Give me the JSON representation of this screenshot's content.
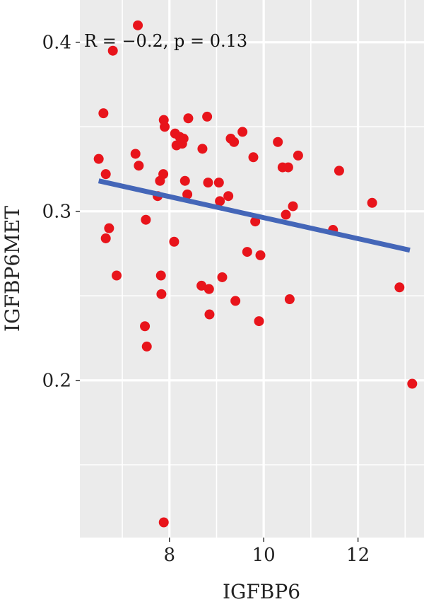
{
  "chart_data": {
    "type": "scatter",
    "title": "",
    "xlabel": "IGFBP6",
    "ylabel": "IGFBP6MET",
    "annotation": "R = −0.2, p = 0.13",
    "xlim": [
      6.1,
      13.4
    ],
    "ylim": [
      0.107,
      0.425
    ],
    "x_ticks": [
      8,
      10,
      12
    ],
    "x_tick_labels": [
      "8",
      "10",
      "12"
    ],
    "y_ticks": [
      0.2,
      0.3,
      0.4
    ],
    "y_tick_labels": [
      "0.2",
      "0.3",
      "0.4"
    ],
    "grid": true,
    "colors": {
      "panel": "#ebebeb",
      "grid": "#ffffff",
      "points": "#e8141b",
      "fit": "#4466b8"
    },
    "fit_line": {
      "x": [
        6.5,
        13.1
      ],
      "y": [
        0.318,
        0.277
      ]
    },
    "points": [
      [
        6.5,
        0.331
      ],
      [
        6.6,
        0.358
      ],
      [
        6.65,
        0.322
      ],
      [
        6.65,
        0.284
      ],
      [
        6.72,
        0.29
      ],
      [
        6.8,
        0.395
      ],
      [
        6.88,
        0.262
      ],
      [
        7.28,
        0.334
      ],
      [
        7.33,
        0.41
      ],
      [
        7.35,
        0.327
      ],
      [
        7.48,
        0.232
      ],
      [
        7.5,
        0.295
      ],
      [
        7.52,
        0.22
      ],
      [
        7.75,
        0.309
      ],
      [
        7.8,
        0.318
      ],
      [
        7.82,
        0.262
      ],
      [
        7.83,
        0.251
      ],
      [
        7.87,
        0.322
      ],
      [
        7.88,
        0.116
      ],
      [
        7.88,
        0.354
      ],
      [
        7.9,
        0.35
      ],
      [
        8.1,
        0.282
      ],
      [
        8.12,
        0.346
      ],
      [
        8.15,
        0.339
      ],
      [
        8.22,
        0.344
      ],
      [
        8.27,
        0.34
      ],
      [
        8.3,
        0.343
      ],
      [
        8.33,
        0.318
      ],
      [
        8.38,
        0.31
      ],
      [
        8.4,
        0.355
      ],
      [
        8.68,
        0.256
      ],
      [
        8.7,
        0.337
      ],
      [
        8.8,
        0.356
      ],
      [
        8.82,
        0.317
      ],
      [
        8.84,
        0.254
      ],
      [
        8.85,
        0.239
      ],
      [
        9.05,
        0.317
      ],
      [
        9.07,
        0.306
      ],
      [
        9.12,
        0.261
      ],
      [
        9.25,
        0.309
      ],
      [
        9.3,
        0.343
      ],
      [
        9.37,
        0.341
      ],
      [
        9.4,
        0.247
      ],
      [
        9.55,
        0.347
      ],
      [
        9.65,
        0.276
      ],
      [
        9.78,
        0.332
      ],
      [
        9.82,
        0.294
      ],
      [
        9.9,
        0.235
      ],
      [
        9.93,
        0.274
      ],
      [
        10.3,
        0.341
      ],
      [
        10.4,
        0.326
      ],
      [
        10.47,
        0.298
      ],
      [
        10.52,
        0.326
      ],
      [
        10.55,
        0.248
      ],
      [
        10.62,
        0.303
      ],
      [
        10.73,
        0.333
      ],
      [
        11.47,
        0.289
      ],
      [
        11.6,
        0.324
      ],
      [
        12.3,
        0.305
      ],
      [
        12.88,
        0.255
      ],
      [
        13.15,
        0.198
      ]
    ]
  }
}
